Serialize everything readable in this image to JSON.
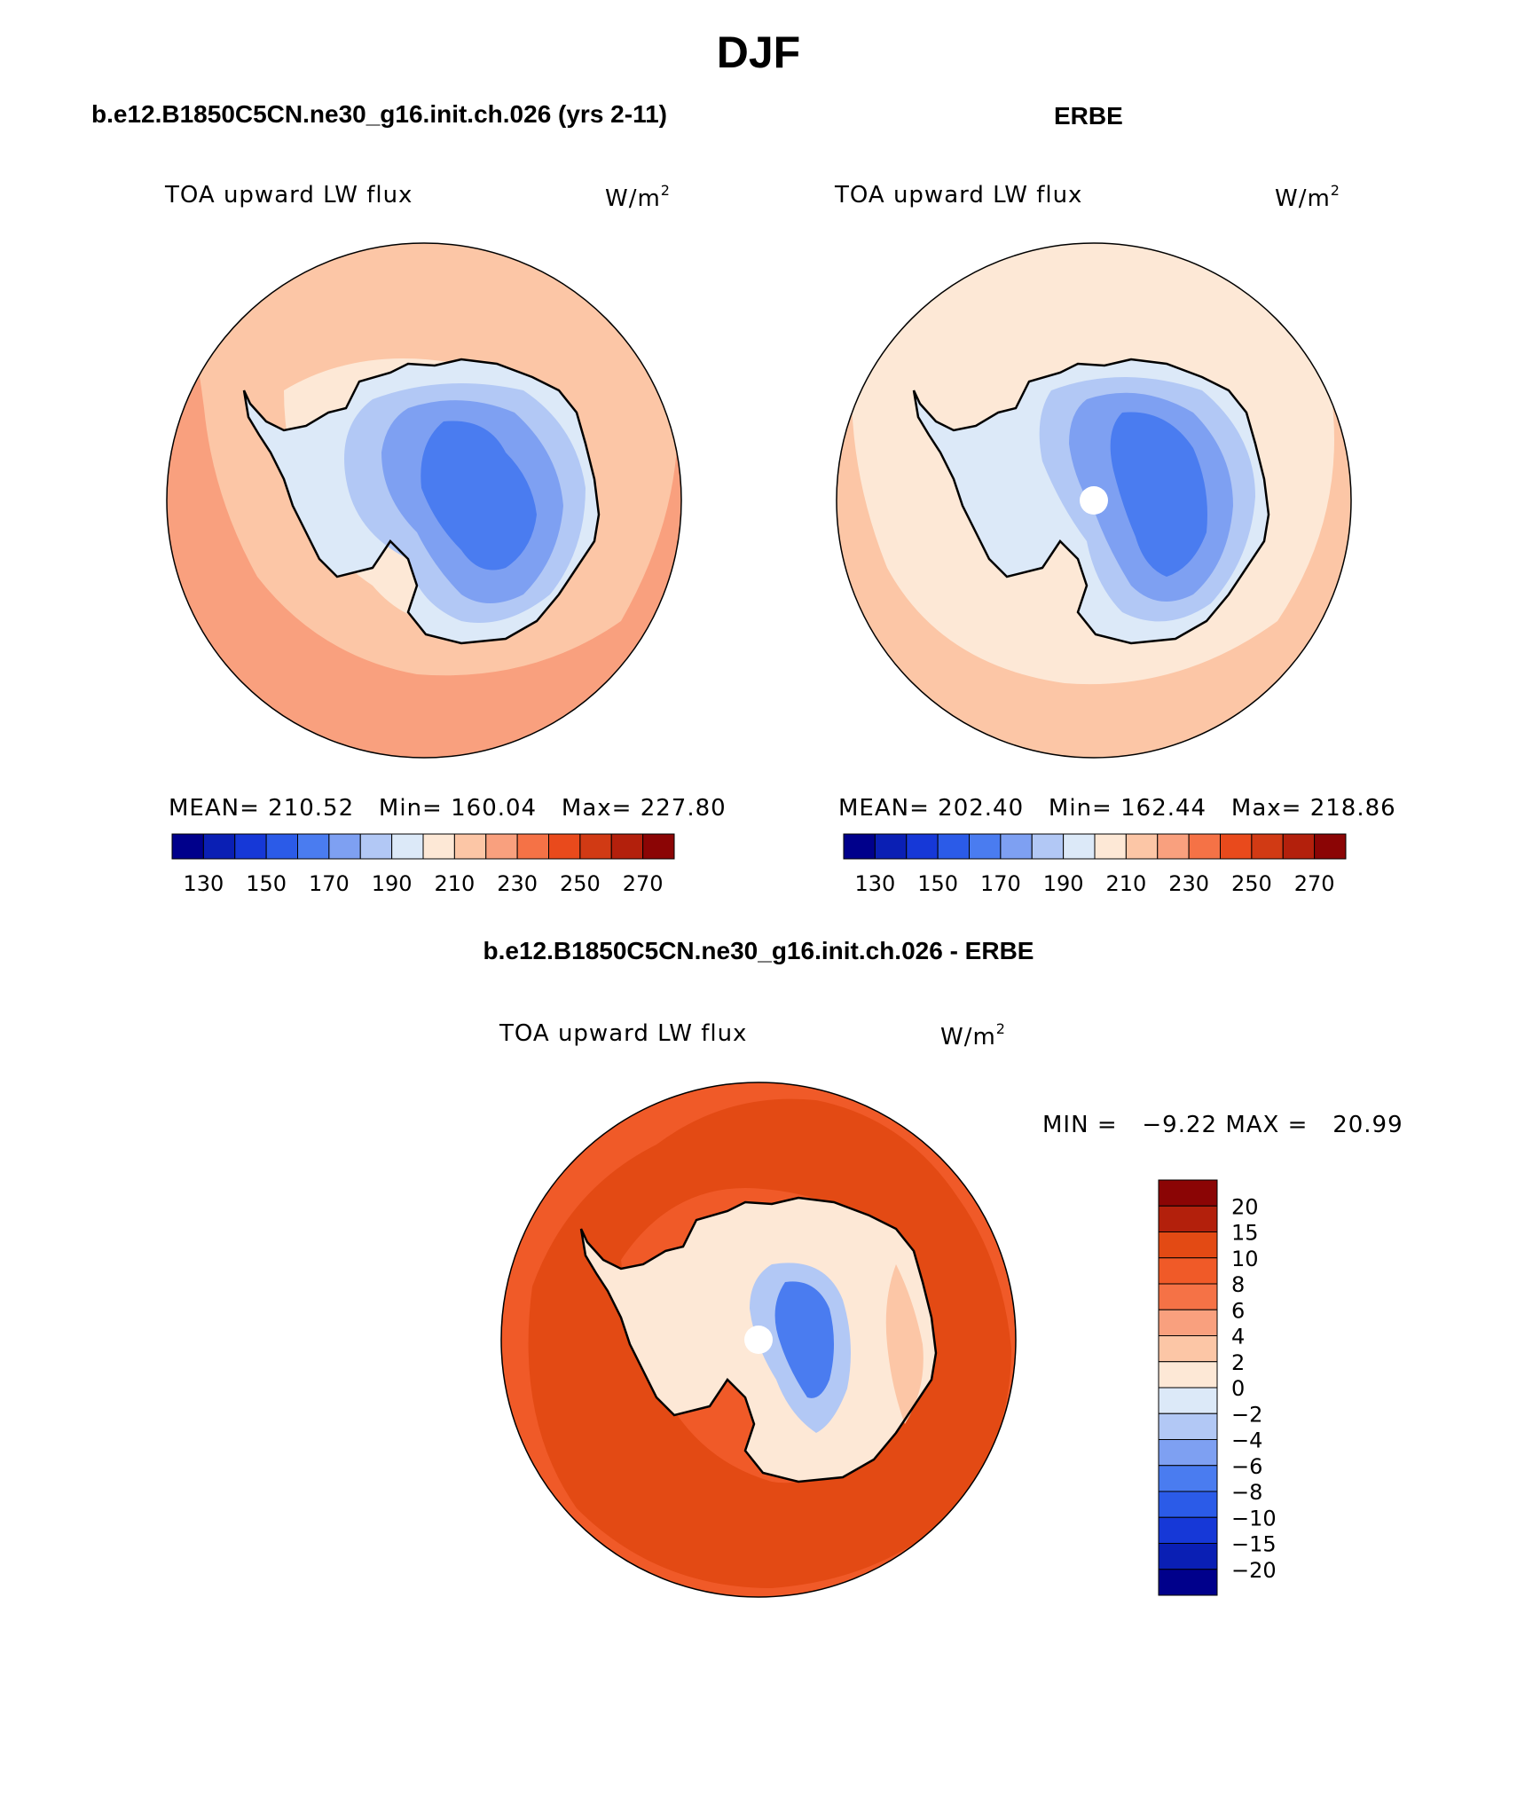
{
  "title": "DJF",
  "palette_abs": [
    "#00008b",
    "#0a1fb4",
    "#1638d7",
    "#2b5be8",
    "#4a7cf0",
    "#7ea0f2",
    "#b2c8f5",
    "#dce9f8",
    "#fde8d6",
    "#fcc6a6",
    "#f9a07e",
    "#f57246",
    "#e94a1c",
    "#d13a14",
    "#b3200c",
    "#8b0505"
  ],
  "palette_diff": [
    "#00008b",
    "#0a1fb4",
    "#1638d7",
    "#2b5be8",
    "#4a7cf0",
    "#7ea0f2",
    "#b2c8f5",
    "#dce9f8",
    "#fde8d6",
    "#fcc6a6",
    "#f9a07e",
    "#f57246",
    "#f05a28",
    "#e34a14",
    "#b3200c",
    "#8b0505"
  ],
  "panels": [
    {
      "header": "b.e12.B1850C5CN.ne30_g16.init.ch.026 (yrs 2-11)",
      "var_label": "TOA upward LW flux",
      "units": "W/m",
      "units_sup": "2",
      "stats": {
        "mean": "MEAN= 210.52",
        "min": "Min= 160.04",
        "max": "Max= 227.80"
      },
      "colorbar_ticks": [
        "130",
        "150",
        "170",
        "190",
        "210",
        "230",
        "250",
        "270"
      ]
    },
    {
      "header": "ERBE",
      "var_label": "TOA upward LW flux",
      "units": "W/m",
      "units_sup": "2",
      "stats": {
        "mean": "MEAN= 202.40",
        "min": "Min= 162.44",
        "max": "Max= 218.86"
      },
      "colorbar_ticks": [
        "130",
        "150",
        "170",
        "190",
        "210",
        "230",
        "250",
        "270"
      ]
    }
  ],
  "diff_panel": {
    "header": "b.e12.B1850C5CN.ne30_g16.init.ch.026 - ERBE",
    "var_label": "TOA upward LW flux",
    "units": "W/m",
    "units_sup": "2",
    "minmax": "MIN =   −9.22 MAX =   20.99",
    "colorbar_labels": [
      "20",
      "15",
      "10",
      "8",
      "6",
      "4",
      "2",
      "0",
      "−2",
      "−4",
      "−6",
      "−8",
      "−10",
      "−15",
      "−20"
    ]
  }
}
